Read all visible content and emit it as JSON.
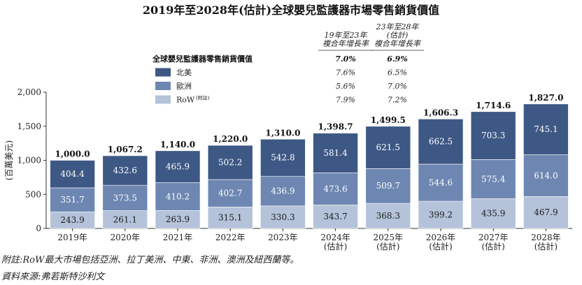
{
  "chart_data": {
    "type": "bar",
    "stacked": true,
    "title": "2019年至2028年(估計)全球嬰兒監護器市場零售銷貨價值",
    "ylabel": "(百萬美元)",
    "ylim": [
      0,
      2000
    ],
    "yticks": [
      "0",
      "500",
      "1,000",
      "1,500",
      "2,000"
    ],
    "ytick_values": [
      0,
      500,
      1000,
      1500,
      2000
    ],
    "categories": [
      "2019年",
      "2020年",
      "2021年",
      "2022年",
      "2023年",
      "2024年",
      "2025年",
      "2026年",
      "2027年",
      "2028年"
    ],
    "category_notes": [
      "",
      "",
      "",
      "",
      "",
      "(估計)",
      "(估計)",
      "(估計)",
      "(估計)",
      "(估計)"
    ],
    "series": [
      {
        "name": "RoW",
        "superscript": "(附註)",
        "color": "#b4c3da",
        "values": [
          243.9,
          261.1,
          263.9,
          315.1,
          330.3,
          343.7,
          368.3,
          399.2,
          435.9,
          467.9
        ],
        "labels": [
          "243.9",
          "261.1",
          "263.9",
          "315.1",
          "330.3",
          "343.7",
          "368.3",
          "399.2",
          "435.9",
          "467.9"
        ]
      },
      {
        "name": "歐洲",
        "color": "#6d87b2",
        "values": [
          351.7,
          373.5,
          410.2,
          402.7,
          436.9,
          473.6,
          509.7,
          544.6,
          575.4,
          614.0
        ],
        "labels": [
          "351.7",
          "373.5",
          "410.2",
          "402.7",
          "436.9",
          "473.6",
          "509.7",
          "544.6",
          "575.4",
          "614.0"
        ]
      },
      {
        "name": "北美",
        "color": "#3d5885",
        "values": [
          404.4,
          432.6,
          465.9,
          502.2,
          542.8,
          581.4,
          621.5,
          662.5,
          703.3,
          745.1
        ],
        "labels": [
          "404.4",
          "432.6",
          "465.9",
          "502.2",
          "542.8",
          "581.4",
          "621.5",
          "662.5",
          "703.3",
          "745.1"
        ]
      }
    ],
    "totals": [
      1000.0,
      1067.2,
      1140.0,
      1220.0,
      1310.0,
      1398.7,
      1499.5,
      1606.3,
      1714.6,
      1827.0
    ],
    "total_labels": [
      "1,000.0",
      "1,067.2",
      "1,140.0",
      "1,220.0",
      "1,310.0",
      "1,398.7",
      "1,499.5",
      "1,606.3",
      "1,714.6",
      "1,827.0"
    ],
    "legend_title": "全球嬰兒監護器零售銷貨價值",
    "cagr_table": {
      "headers": [
        [
          "19年至23年",
          "複合年增長率"
        ],
        [
          "23年至28年",
          "(估計)",
          "複合年增長率"
        ]
      ],
      "total_row": [
        "7.0%",
        "6.9%"
      ],
      "rows": [
        {
          "series": "北美",
          "values": [
            "7.6%",
            "6.5%"
          ]
        },
        {
          "series": "歐洲",
          "values": [
            "5.6%",
            "7.0%"
          ]
        },
        {
          "series": "RoW",
          "values": [
            "7.9%",
            "7.2%"
          ]
        }
      ]
    }
  },
  "footnotes": {
    "note": "附註:RoW最大市場包括亞洲、拉丁美洲、中東、非洲、澳洲及紐西蘭等。",
    "source": "資料來源:弗若斯特沙利文"
  }
}
